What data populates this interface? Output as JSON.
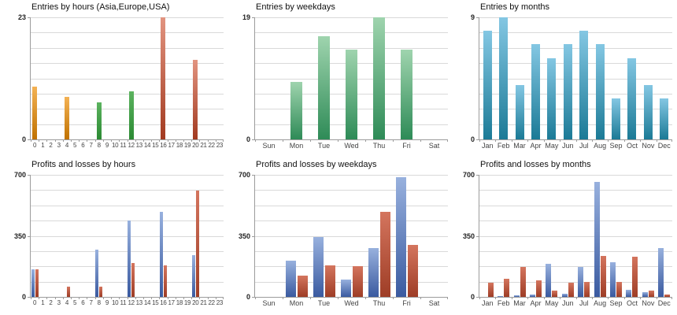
{
  "page": {
    "background": "#FFFFFF"
  },
  "chart_data": [
    {
      "type": "bar",
      "title": "Entries by hours (Asia,Europe,USA)",
      "categories": [
        "0",
        "1",
        "2",
        "3",
        "4",
        "5",
        "6",
        "7",
        "8",
        "9",
        "10",
        "11",
        "12",
        "13",
        "14",
        "15",
        "16",
        "17",
        "18",
        "19",
        "20",
        "21",
        "22",
        "23"
      ],
      "values": [
        10,
        0,
        0,
        0,
        8,
        0,
        0,
        0,
        7,
        0,
        0,
        0,
        9,
        0,
        0,
        0,
        23,
        0,
        0,
        0,
        15,
        0,
        0,
        0
      ],
      "value_series": [
        "Asia",
        "",
        "",
        "",
        "Asia",
        "",
        "",
        "",
        "Europe",
        "",
        "",
        "",
        "Europe",
        "",
        "",
        "",
        "USA",
        "",
        "",
        "",
        "USA",
        "",
        "",
        ""
      ],
      "series_colors": {
        "Asia": [
          "#F4B254",
          "#C07201"
        ],
        "Europe": [
          "#5CB35F",
          "#2B8A33"
        ],
        "USA": [
          "#E29480",
          "#A23A20"
        ]
      },
      "ylim": [
        0,
        23
      ],
      "yticks": [
        0,
        23
      ],
      "grid_intervals": 8,
      "xlabel": "",
      "ylabel": "",
      "legend": "none",
      "grid": "on"
    },
    {
      "type": "bar",
      "title": "Entries by weekdays",
      "categories": [
        "Sun",
        "Mon",
        "Tue",
        "Wed",
        "Thu",
        "Fri",
        "Sat"
      ],
      "values": [
        0,
        9,
        16,
        14,
        19,
        14,
        0
      ],
      "bar_color": [
        "#9FD4AE",
        "#2E8B57"
      ],
      "ylim": [
        0,
        19
      ],
      "yticks": [
        0,
        19
      ],
      "grid_intervals": 8,
      "xlabel": "",
      "ylabel": "",
      "legend": "none",
      "grid": "on"
    },
    {
      "type": "bar",
      "title": "Entries by months",
      "categories": [
        "Jan",
        "Feb",
        "Mar",
        "Apr",
        "May",
        "Jun",
        "Jul",
        "Aug",
        "Sep",
        "Oct",
        "Nov",
        "Dec"
      ],
      "values": [
        8,
        9,
        4,
        7,
        6,
        7,
        8,
        7,
        3,
        6,
        4,
        3
      ],
      "bar_color": [
        "#84C7E3",
        "#1B7A96"
      ],
      "ylim": [
        0,
        9
      ],
      "yticks": [
        0,
        9
      ],
      "grid_intervals": 8,
      "xlabel": "",
      "ylabel": "",
      "legend": "none",
      "grid": "on"
    },
    {
      "type": "bar",
      "title": "Profits and losses by hours",
      "categories": [
        "0",
        "1",
        "2",
        "3",
        "4",
        "5",
        "6",
        "7",
        "8",
        "9",
        "10",
        "11",
        "12",
        "13",
        "14",
        "15",
        "16",
        "17",
        "18",
        "19",
        "20",
        "21",
        "22",
        "23"
      ],
      "series": [
        {
          "name": "profits",
          "color": [
            "#98B1DE",
            "#3A5AA0"
          ],
          "values": [
            160,
            0,
            0,
            0,
            0,
            0,
            0,
            0,
            270,
            0,
            0,
            0,
            440,
            0,
            0,
            0,
            490,
            0,
            0,
            0,
            240,
            0,
            0,
            0
          ]
        },
        {
          "name": "losses",
          "color": [
            "#D4755E",
            "#9E3D26"
          ],
          "values": [
            160,
            0,
            0,
            0,
            60,
            0,
            0,
            0,
            60,
            0,
            0,
            0,
            195,
            0,
            0,
            0,
            180,
            0,
            0,
            0,
            610,
            0,
            0,
            0
          ]
        }
      ],
      "ylim": [
        0,
        700
      ],
      "yticks": [
        0,
        350,
        700
      ],
      "grid_intervals": 8,
      "xlabel": "",
      "ylabel": "",
      "legend": "none",
      "grid": "on"
    },
    {
      "type": "bar",
      "title": "Profits and losses by weekdays",
      "categories": [
        "Sun",
        "Mon",
        "Tue",
        "Wed",
        "Thu",
        "Fri",
        "Sat"
      ],
      "series": [
        {
          "name": "profits",
          "color": [
            "#98B1DE",
            "#3A5AA0"
          ],
          "values": [
            0,
            210,
            345,
            100,
            280,
            685,
            0
          ]
        },
        {
          "name": "losses",
          "color": [
            "#D4755E",
            "#9E3D26"
          ],
          "values": [
            0,
            120,
            180,
            175,
            490,
            300,
            0
          ]
        }
      ],
      "ylim": [
        0,
        700
      ],
      "yticks": [
        0,
        350,
        700
      ],
      "grid_intervals": 8,
      "xlabel": "",
      "ylabel": "",
      "legend": "none",
      "grid": "on"
    },
    {
      "type": "bar",
      "title": "Profits and losses by months",
      "categories": [
        "Jan",
        "Feb",
        "Mar",
        "Apr",
        "May",
        "Jun",
        "Jul",
        "Aug",
        "Sep",
        "Oct",
        "Nov",
        "Dec"
      ],
      "series": [
        {
          "name": "profits",
          "color": [
            "#98B1DE",
            "#3A5AA0"
          ],
          "values": [
            0,
            5,
            10,
            15,
            190,
            20,
            170,
            660,
            200,
            40,
            25,
            280
          ]
        },
        {
          "name": "losses",
          "color": [
            "#D4755E",
            "#9E3D26"
          ],
          "values": [
            80,
            105,
            170,
            95,
            35,
            80,
            85,
            235,
            85,
            230,
            35,
            15
          ]
        }
      ],
      "ylim": [
        0,
        700
      ],
      "yticks": [
        0,
        350,
        700
      ],
      "grid_intervals": 8,
      "xlabel": "",
      "ylabel": "",
      "legend": "none",
      "grid": "on"
    }
  ]
}
